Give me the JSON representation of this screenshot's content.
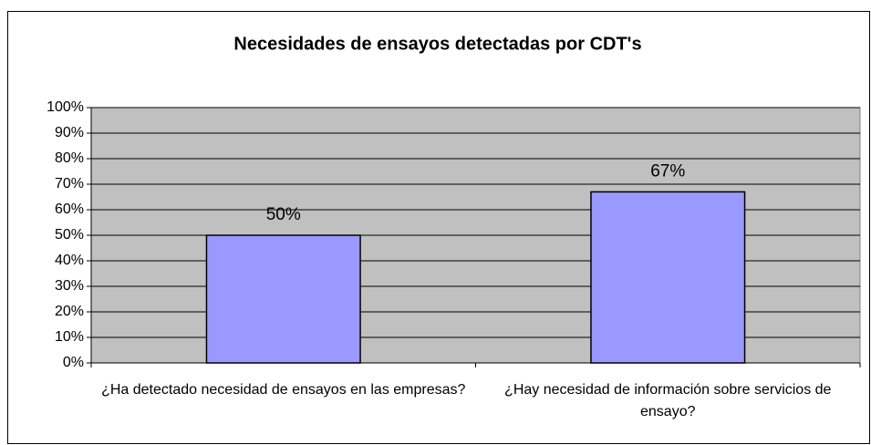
{
  "chart_data": {
    "type": "bar",
    "title": "Necesidades de ensayos detectadas por CDT's",
    "categories": [
      "¿Ha detectado necesidad de ensayos en las empresas?",
      "¿Hay necesidad de información sobre servicios de ensayo?"
    ],
    "values": [
      50,
      67
    ],
    "value_labels": [
      "50%",
      "67%"
    ],
    "color": "#9999ff",
    "ylim": [
      0,
      100
    ],
    "yticks": [
      {
        "value": 0,
        "label": "0%"
      },
      {
        "value": 10,
        "label": "10%"
      },
      {
        "value": 20,
        "label": "20%"
      },
      {
        "value": 30,
        "label": "30%"
      },
      {
        "value": 40,
        "label": "40%"
      },
      {
        "value": 50,
        "label": "50%"
      },
      {
        "value": 60,
        "label": "60%"
      },
      {
        "value": 70,
        "label": "70%"
      },
      {
        "value": 80,
        "label": "80%"
      },
      {
        "value": 90,
        "label": "90%"
      },
      {
        "value": 100,
        "label": "100%"
      }
    ],
    "grid": true
  }
}
